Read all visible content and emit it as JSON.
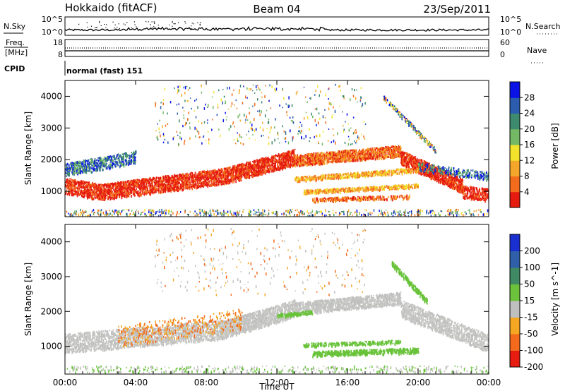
{
  "header": {
    "title_left": "Hokkaido (fitACF)",
    "title_center": "Beam 04",
    "title_right": "23/Sep/2011"
  },
  "strip_panels": {
    "nsky": {
      "label": "N.Sky",
      "ticks": [
        "10^5",
        "10^0"
      ],
      "right_ticks": [
        "10^5",
        "10^0"
      ],
      "right_label": "N.Search"
    },
    "freq": {
      "label_top": "Freq.",
      "label_bottom": "[MHz]",
      "ticks": [
        "18",
        "8"
      ],
      "right_ticks": [
        "60",
        "0"
      ],
      "right_label": "Nave"
    },
    "cpid": {
      "label": "CPID",
      "text": "normal (fast) 151"
    }
  },
  "chart_data": [
    {
      "type": "heatmap",
      "name": "power",
      "xlabel": "",
      "ylabel": "Slant Range [km]",
      "x_range_hours": [
        0,
        24
      ],
      "ylim": [
        200,
        4500
      ],
      "y_ticks": [
        "4000",
        "3000",
        "2000",
        "1000"
      ],
      "y_tick_values": [
        4000,
        3000,
        2000,
        1000
      ],
      "colorbar": {
        "label": "Power [dB]",
        "ticks": [
          "28",
          "24",
          "20",
          "16",
          "12",
          "8",
          "4"
        ],
        "tick_values": [
          28,
          24,
          20,
          16,
          12,
          8,
          4
        ],
        "range": [
          0,
          32
        ],
        "colors": [
          "#0a12e6",
          "#2b5cae",
          "#3d8a6e",
          "#74b866",
          "#f3e22c",
          "#f4a62a",
          "#f36c1d",
          "#e51b10"
        ]
      }
    },
    {
      "type": "heatmap",
      "name": "velocity",
      "xlabel": "Time UT",
      "ylabel": "Slant Range [km]",
      "x_range_hours": [
        0,
        24
      ],
      "x_ticks": [
        "00:00",
        "04:00",
        "08:00",
        "12:00",
        "16:00",
        "20:00",
        "00:00"
      ],
      "x_tick_values": [
        0,
        4,
        8,
        12,
        16,
        20,
        24
      ],
      "ylim": [
        200,
        4500
      ],
      "y_ticks": [
        "4000",
        "3000",
        "2000",
        "1000"
      ],
      "y_tick_values": [
        4000,
        3000,
        2000,
        1000
      ],
      "colorbar": {
        "label": "Velocity [m s^-1]",
        "ticks": [
          "200",
          "100",
          "50",
          "15",
          "-15",
          "-50",
          "-100",
          "-200"
        ],
        "tick_values": [
          200,
          100,
          50,
          15,
          -15,
          -50,
          -100,
          -200
        ],
        "colors": [
          "#1a2fd0",
          "#2f5fa8",
          "#3f8a64",
          "#6cc23a",
          "#bfbfbf",
          "#f5a623",
          "#f46a1c",
          "#e61d10"
        ]
      }
    }
  ],
  "colors": {
    "echo_gray": "#c8c8c4",
    "ground_green": "#66c43a"
  }
}
